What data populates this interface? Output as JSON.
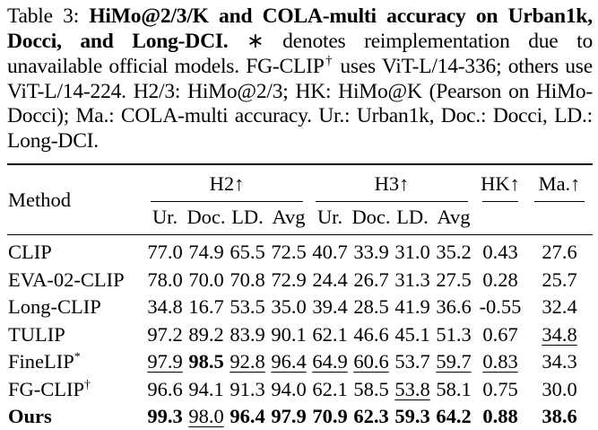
{
  "caption": {
    "label": "Table 3: ",
    "title_bold": "HiMo@2/3/K and COLA-multi accuracy on Urban1k, Docci, and Long-DCI.",
    "body_1": " ∗ denotes reimplementation due to unavailable official models. FG-CLIP",
    "dagger": "†",
    "body_2": " uses ViT-L/14-336; others use ViT-L/14-224. H2/3: HiMo@2/3; HK: HiMo@K (Pearson on HiMo-Docci); Ma.: COLA-multi accuracy. Ur.: Urban1k, Doc.: Docci, LD.: Long-DCI."
  },
  "table": {
    "header": {
      "method": "Method",
      "groups": [
        {
          "label": "H2↑"
        },
        {
          "label": "H3↑"
        },
        {
          "label": "HK↑"
        },
        {
          "label": "Ma.↑"
        }
      ],
      "subcols": [
        "Ur.",
        "Doc.",
        "LD.",
        "Avg",
        "Ur.",
        "Doc.",
        "LD.",
        "Avg"
      ]
    },
    "rows": [
      {
        "method": "CLIP",
        "sup": "",
        "bold": false,
        "cells": [
          {
            "v": "77.0"
          },
          {
            "v": "74.9"
          },
          {
            "v": "65.5"
          },
          {
            "v": "72.5"
          },
          {
            "v": "40.7"
          },
          {
            "v": "33.9"
          },
          {
            "v": "31.0"
          },
          {
            "v": "35.2"
          },
          {
            "v": "0.43"
          },
          {
            "v": "27.6"
          }
        ]
      },
      {
        "method": "EVA-02-CLIP",
        "sup": "",
        "bold": false,
        "cells": [
          {
            "v": "78.0"
          },
          {
            "v": "70.0"
          },
          {
            "v": "70.8"
          },
          {
            "v": "72.9"
          },
          {
            "v": "24.4"
          },
          {
            "v": "26.7"
          },
          {
            "v": "31.3"
          },
          {
            "v": "27.5"
          },
          {
            "v": "0.28"
          },
          {
            "v": "25.7"
          }
        ]
      },
      {
        "method": "Long-CLIP",
        "sup": "",
        "bold": false,
        "cells": [
          {
            "v": "34.8"
          },
          {
            "v": "16.7"
          },
          {
            "v": "53.5"
          },
          {
            "v": "35.0"
          },
          {
            "v": "39.4"
          },
          {
            "v": "28.5"
          },
          {
            "v": "41.9"
          },
          {
            "v": "36.6"
          },
          {
            "v": "-0.55"
          },
          {
            "v": "32.4"
          }
        ]
      },
      {
        "method": "TULIP",
        "sup": "",
        "bold": false,
        "cells": [
          {
            "v": "97.2"
          },
          {
            "v": "89.2"
          },
          {
            "v": "83.9"
          },
          {
            "v": "90.1"
          },
          {
            "v": "62.1"
          },
          {
            "v": "46.6"
          },
          {
            "v": "45.1"
          },
          {
            "v": "51.3"
          },
          {
            "v": "0.67"
          },
          {
            "v": "34.8",
            "u": true
          }
        ]
      },
      {
        "method": "FineLIP",
        "sup": "*",
        "bold": false,
        "cells": [
          {
            "v": "97.9",
            "u": true
          },
          {
            "v": "98.5",
            "b": true
          },
          {
            "v": "92.8",
            "u": true
          },
          {
            "v": "96.4",
            "u": true
          },
          {
            "v": "64.9",
            "u": true
          },
          {
            "v": "60.6",
            "u": true
          },
          {
            "v": "53.7"
          },
          {
            "v": "59.7",
            "u": true
          },
          {
            "v": "0.83",
            "u": true
          },
          {
            "v": "34.3"
          }
        ]
      },
      {
        "method": "FG-CLIP",
        "sup": "†",
        "bold": false,
        "cells": [
          {
            "v": "96.6"
          },
          {
            "v": "94.1"
          },
          {
            "v": "91.3"
          },
          {
            "v": "94.0"
          },
          {
            "v": "62.1"
          },
          {
            "v": "58.5"
          },
          {
            "v": "53.8",
            "u": true
          },
          {
            "v": "58.1"
          },
          {
            "v": "0.75"
          },
          {
            "v": "30.0"
          }
        ]
      },
      {
        "method": "Ours",
        "sup": "",
        "bold": true,
        "cells": [
          {
            "v": "99.3",
            "b": true
          },
          {
            "v": "98.0",
            "u": true
          },
          {
            "v": "96.4",
            "b": true
          },
          {
            "v": "97.9",
            "b": true
          },
          {
            "v": "70.9",
            "b": true
          },
          {
            "v": "62.3",
            "b": true
          },
          {
            "v": "59.3",
            "b": true
          },
          {
            "v": "64.2",
            "b": true
          },
          {
            "v": "0.88",
            "b": true
          },
          {
            "v": "38.6",
            "b": true
          }
        ]
      }
    ]
  }
}
